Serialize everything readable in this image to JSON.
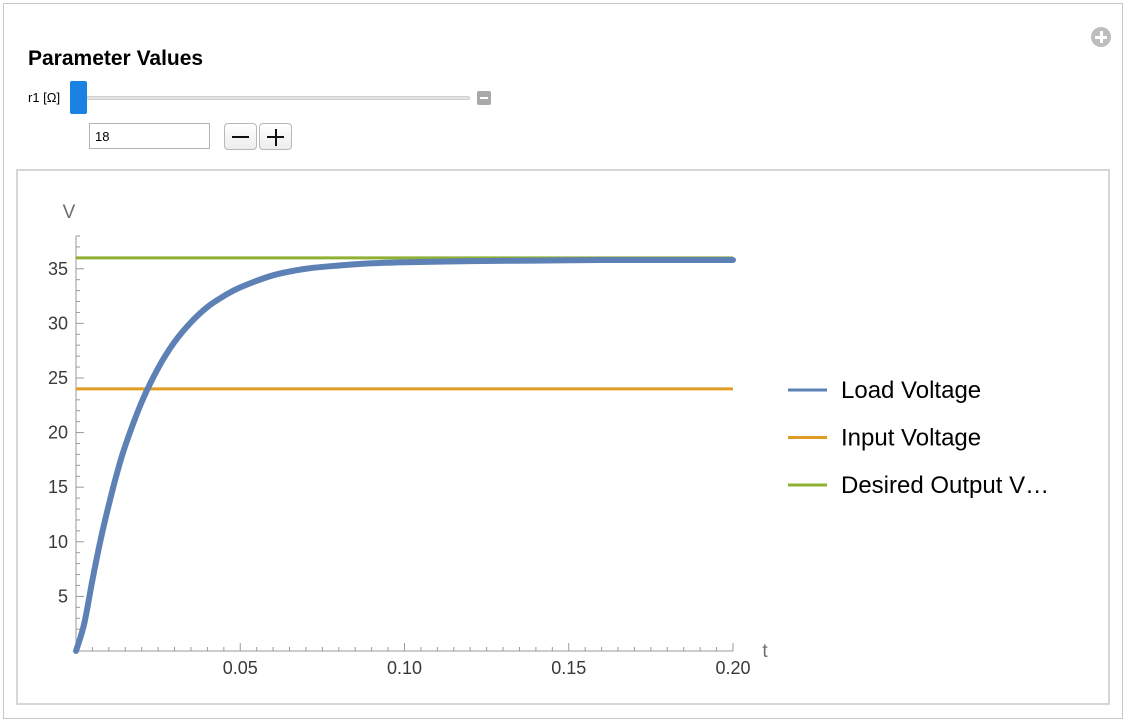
{
  "header": {
    "title": "Parameter Values"
  },
  "control": {
    "slider_label": "r1 [Ω]",
    "input_value": "18",
    "slider_min": 18,
    "slider_value": 18,
    "icons": {
      "options_toggle": "plus-circle-icon",
      "slider_toggle": "minus-square-icon",
      "decrement": "minus-icon",
      "increment": "plus-icon"
    },
    "accent_color": "#1a82e2"
  },
  "chart_data": {
    "type": "line",
    "xlabel": "t",
    "ylabel": "V",
    "xlim": [
      0,
      0.2
    ],
    "ylim": [
      0,
      38
    ],
    "x_ticks": [
      0.05,
      0.1,
      0.15,
      0.2
    ],
    "x_tick_labels": [
      "0.05",
      "0.10",
      "0.15",
      "0.20"
    ],
    "y_ticks": [
      5,
      10,
      15,
      20,
      25,
      30,
      35
    ],
    "y_tick_labels": [
      "5",
      "10",
      "15",
      "20",
      "25",
      "30",
      "35"
    ],
    "grid": false,
    "legend_position": "right",
    "series": [
      {
        "name": "Load Voltage",
        "color": "#5e81b5",
        "x": [
          0,
          0.0025,
          0.005,
          0.0075,
          0.01,
          0.0125,
          0.015,
          0.02,
          0.025,
          0.03,
          0.035,
          0.04,
          0.045,
          0.05,
          0.06,
          0.07,
          0.08,
          0.09,
          0.1,
          0.12,
          0.14,
          0.16,
          0.18,
          0.2
        ],
        "y": [
          0,
          2.5,
          6.5,
          10.2,
          13.4,
          16.3,
          18.8,
          22.8,
          25.9,
          28.3,
          30.1,
          31.5,
          32.5,
          33.3,
          34.4,
          35.0,
          35.3,
          35.5,
          35.6,
          35.7,
          35.75,
          35.8,
          35.8,
          35.8
        ]
      },
      {
        "name": "Input Voltage",
        "color": "#e19c24",
        "x": [
          0,
          0.2
        ],
        "y": [
          24,
          24
        ]
      },
      {
        "name": "Desired Output V…",
        "color": "#8fb032",
        "x": [
          0,
          0.2
        ],
        "y": [
          36,
          36
        ]
      }
    ]
  }
}
